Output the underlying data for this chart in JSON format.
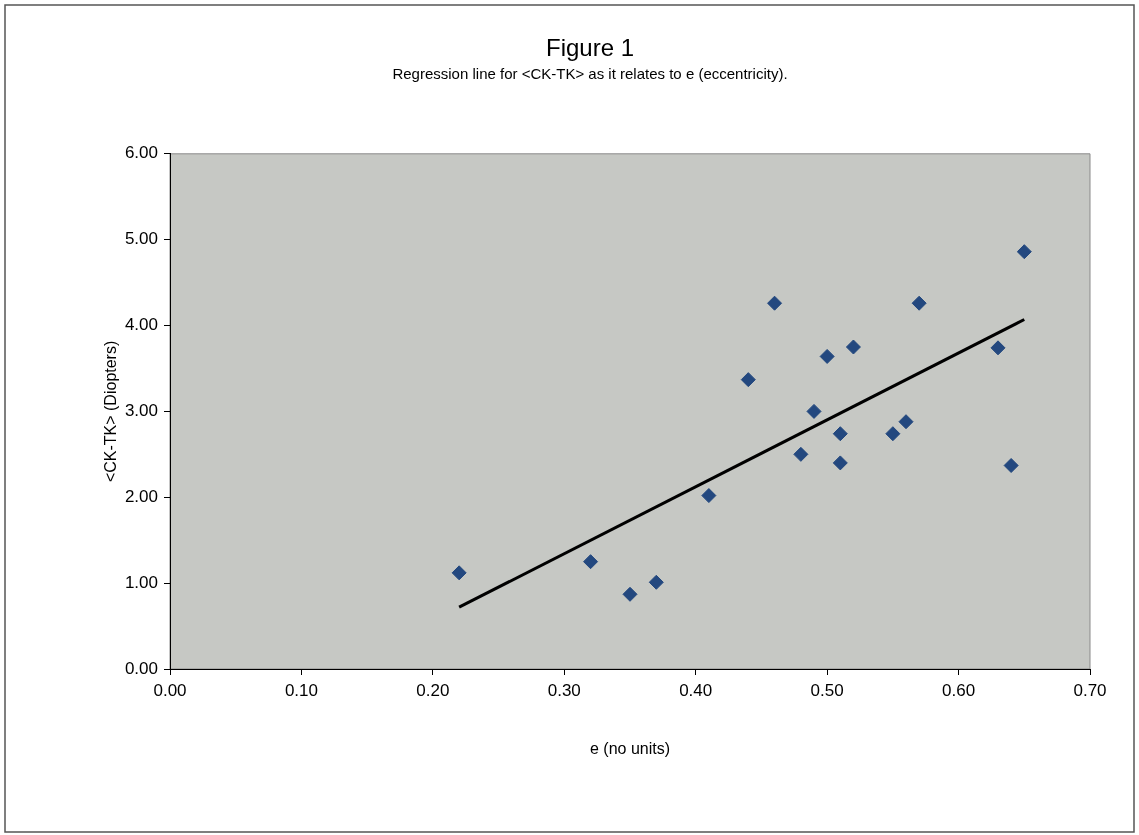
{
  "chart_data": {
    "type": "scatter",
    "title": "Figure 1",
    "subtitle": "Regression line for <CK-TK> as it relates to e (eccentricity).",
    "xlabel": "e (no units)",
    "ylabel": "<CK-TK> (Diopters)",
    "xlim": [
      0,
      0.7
    ],
    "xticks": [
      {
        "value": 0,
        "label": "0.00"
      },
      {
        "value": 0.1,
        "label": "0.10"
      },
      {
        "value": 0.2,
        "label": "0.20"
      },
      {
        "value": 0.3,
        "label": "0.30"
      },
      {
        "value": 0.4,
        "label": "0.40"
      },
      {
        "value": 0.5,
        "label": "0.50"
      },
      {
        "value": 0.6,
        "label": "0.60"
      },
      {
        "value": 0.7,
        "label": "0.70"
      }
    ],
    "ylim": [
      0,
      6
    ],
    "yticks": [
      {
        "value": 0,
        "label": "0.00"
      },
      {
        "value": 1,
        "label": "1.00"
      },
      {
        "value": 2,
        "label": "2.00"
      },
      {
        "value": 3,
        "label": "3.00"
      },
      {
        "value": 4,
        "label": "4.00"
      },
      {
        "value": 5,
        "label": "5.00"
      },
      {
        "value": 6,
        "label": "6.00"
      }
    ],
    "grid": false,
    "legend": false,
    "marker": "diamond",
    "series": [
      {
        "color": "#23487f",
        "x": [
          0.22,
          0.32,
          0.35,
          0.37,
          0.41,
          0.44,
          0.46,
          0.48,
          0.49,
          0.5,
          0.51,
          0.51,
          0.52,
          0.55,
          0.56,
          0.57,
          0.63,
          0.64,
          0.65
        ],
        "values": [
          1.12,
          1.25,
          0.87,
          1.01,
          2.02,
          3.37,
          4.26,
          2.5,
          3.0,
          3.64,
          2.74,
          2.4,
          3.75,
          2.74,
          2.88,
          4.26,
          3.74,
          2.37,
          4.86
        ]
      },
      {
        "type": "line",
        "color": "#000000",
        "marker": "none",
        "line_style": "solid",
        "x": [
          0.22,
          0.65
        ],
        "values": [
          0.72,
          4.07
        ]
      }
    ]
  }
}
